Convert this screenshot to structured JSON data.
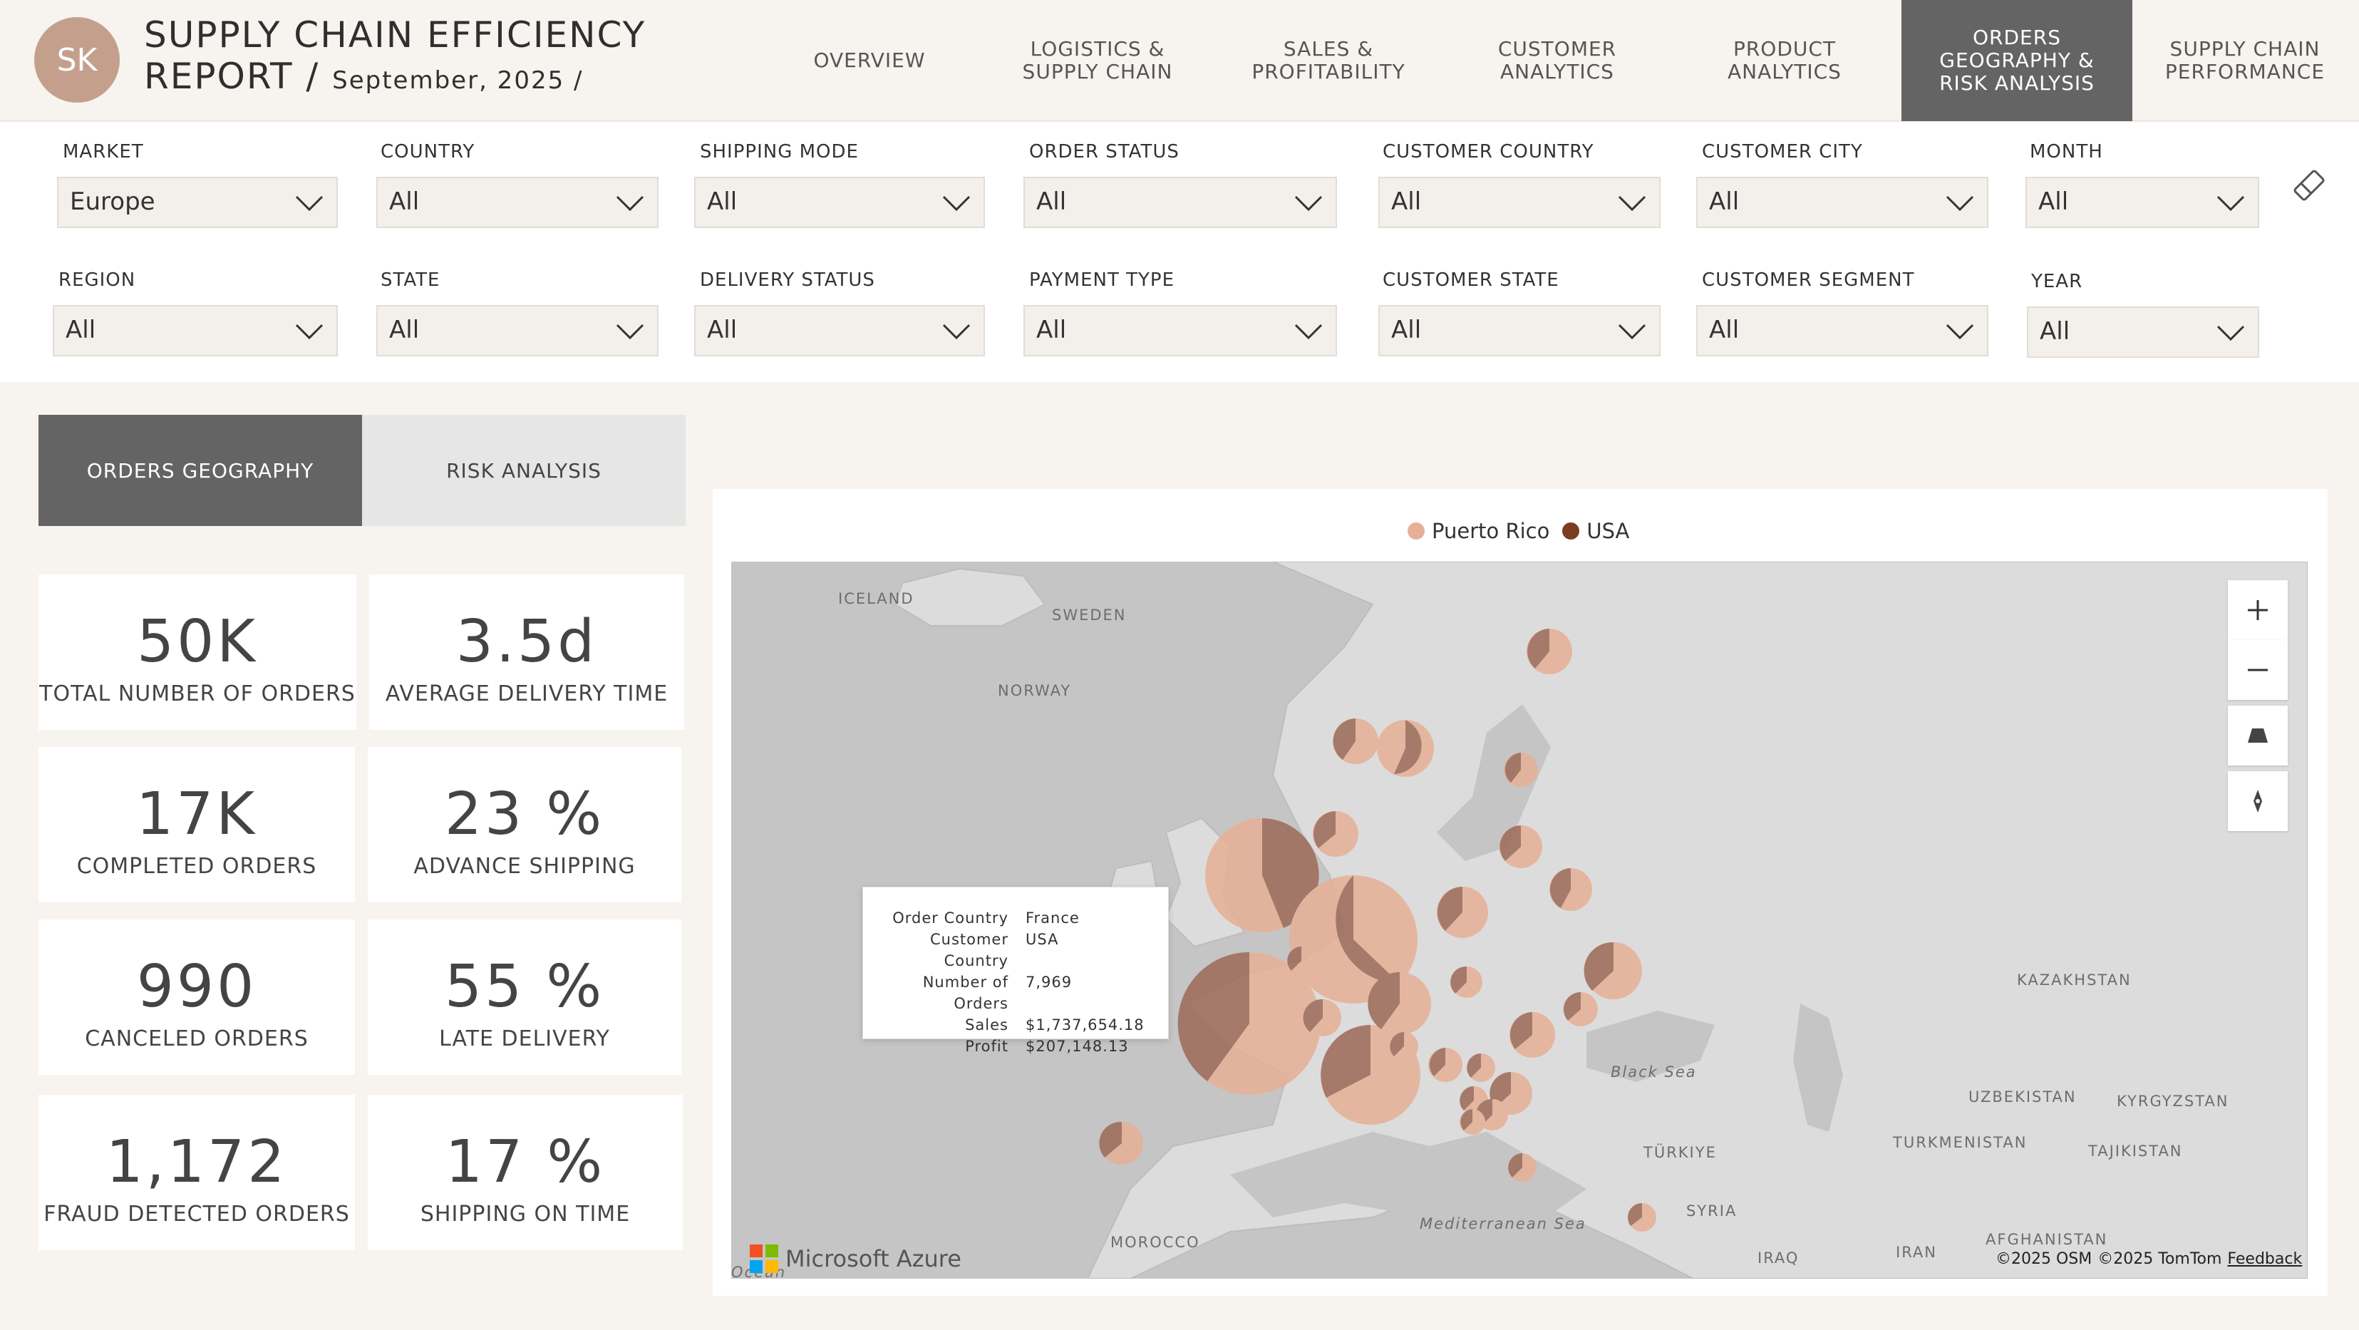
{
  "header": {
    "avatar": "SK",
    "title_line1": "SUPPLY CHAIN EFFICIENCY",
    "title_line2": "REPORT /",
    "title_date": "September, 2025 /"
  },
  "nav": [
    {
      "label": "OVERVIEW"
    },
    {
      "label": "LOGISTICS & SUPPLY CHAIN"
    },
    {
      "label": "SALES & PROFITABILITY"
    },
    {
      "label": "CUSTOMER ANALYTICS"
    },
    {
      "label": "PRODUCT ANALYTICS"
    },
    {
      "label": "ORDERS GEOGRAPHY & RISK ANALYSIS",
      "active": true
    },
    {
      "label": "SUPPLY CHAIN PERFORMANCE"
    }
  ],
  "filters": {
    "row1": [
      {
        "label": "MARKET",
        "value": "Europe"
      },
      {
        "label": "COUNTRY",
        "value": "All"
      },
      {
        "label": "SHIPPING MODE",
        "value": "All"
      },
      {
        "label": "ORDER STATUS",
        "value": "All"
      },
      {
        "label": "CUSTOMER COUNTRY",
        "value": "All"
      },
      {
        "label": "CUSTOMER CITY",
        "value": "All"
      },
      {
        "label": "MONTH",
        "value": "All"
      }
    ],
    "row2": [
      {
        "label": "REGION",
        "value": "All"
      },
      {
        "label": "STATE",
        "value": "All"
      },
      {
        "label": "DELIVERY STATUS",
        "value": "All"
      },
      {
        "label": "PAYMENT TYPE",
        "value": "All"
      },
      {
        "label": "CUSTOMER STATE",
        "value": "All"
      },
      {
        "label": "CUSTOMER SEGMENT",
        "value": "All"
      },
      {
        "label": "YEAR",
        "value": "All"
      }
    ]
  },
  "tabs": {
    "geography": "ORDERS GEOGRAPHY",
    "risk": "RISK ANALYSIS"
  },
  "kpis": [
    {
      "value": "50K",
      "label": "TOTAL NUMBER OF ORDERS"
    },
    {
      "value": "3.5d",
      "label": "AVERAGE DELIVERY TIME"
    },
    {
      "value": "17K",
      "label": "COMPLETED ORDERS"
    },
    {
      "value": "23 %",
      "label": "ADVANCE SHIPPING"
    },
    {
      "value": "990",
      "label": "CANCELED ORDERS"
    },
    {
      "value": "55 %",
      "label": "LATE DELIVERY"
    },
    {
      "value": "1,172",
      "label": "FRAUD DETECTED ORDERS"
    },
    {
      "value": "17 %",
      "label": "SHIPPING ON TIME"
    }
  ],
  "legend": [
    {
      "name": "Puerto Rico",
      "color": "#e6b096"
    },
    {
      "name": "USA",
      "color": "#7a3e22"
    }
  ],
  "map_labels": {
    "iceland": "ICELAND",
    "sweden": "SWEDEN",
    "norway": "NORWAY",
    "kazakhstan": "KAZAKHSTAN",
    "black_sea": "Black Sea",
    "uzbekistan": "UZBEKISTAN",
    "kyrgyzstan": "KYRGYZSTAN",
    "turkmenistan": "TURKMENISTAN",
    "tajikistan": "TAJIKISTAN",
    "turkiye": "TÜRKIYE",
    "syria": "SYRIA",
    "mediterranean": "Mediterranean Sea",
    "morocco": "MOROCCO",
    "iraq": "IRAQ",
    "iran": "IRAN",
    "afghanistan": "AFGHANISTAN",
    "ocean": "Ocean"
  },
  "tooltip": [
    {
      "key": "Order Country",
      "value": "France"
    },
    {
      "key": "Customer Country",
      "value": "USA"
    },
    {
      "key": "Number of Orders",
      "value": "7,969"
    },
    {
      "key": "Sales",
      "value": "$1,737,654.18"
    },
    {
      "key": "Profit",
      "value": "$207,148.13"
    }
  ],
  "map_footer": {
    "provider": "Microsoft Azure",
    "osm": "©2025 OSM",
    "tomtom": "©2025 TomTom",
    "feedback": "Feedback"
  }
}
